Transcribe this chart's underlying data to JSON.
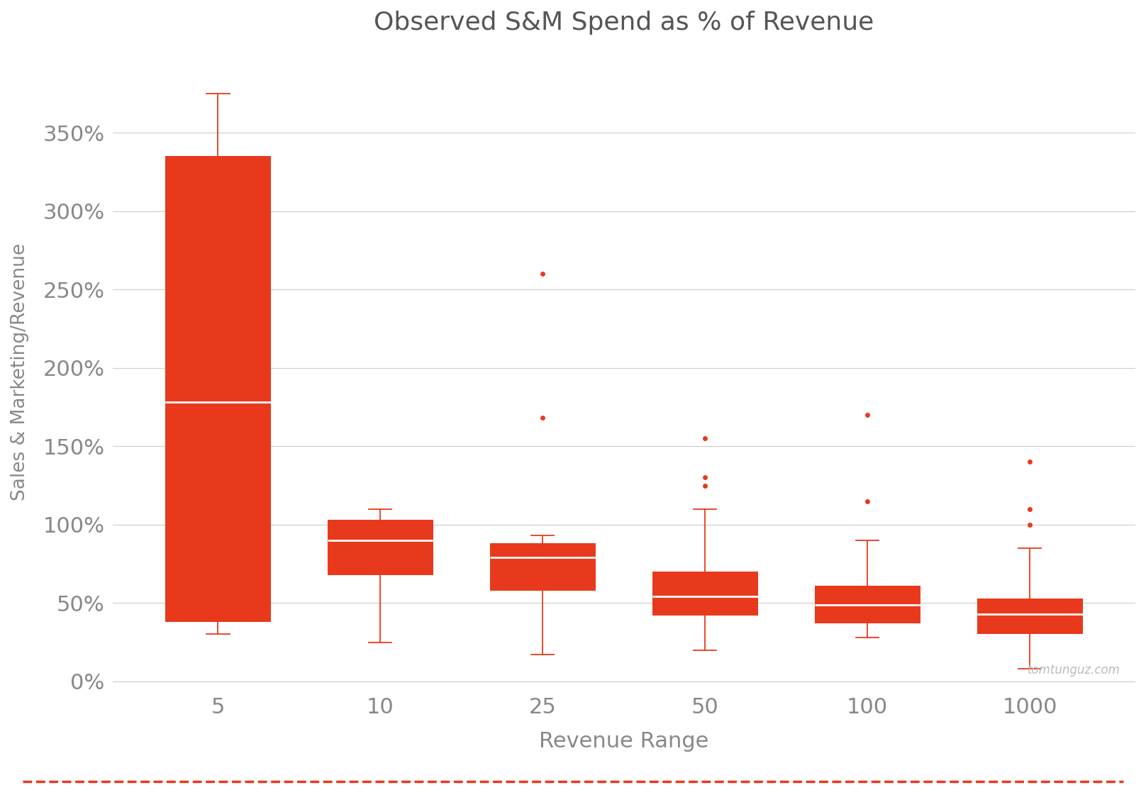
{
  "title": "Observed S&M Spend as % of Revenue",
  "xlabel": "Revenue Range",
  "ylabel": "Sales & Marketing/Revenue",
  "categories": [
    "5",
    "10",
    "25",
    "50",
    "100",
    "1000"
  ],
  "box_color": "#E8391D",
  "median_color": "#FFFFFF",
  "whisker_color": "#E8391D",
  "flier_color": "#E8391D",
  "background_color": "#FFFFFF",
  "grid_color": "#CCCCCC",
  "title_color": "#555555",
  "label_color": "#888888",
  "tick_color": "#888888",
  "dashed_line_color": "#E8391D",
  "watermark": "tomtunguz.com",
  "boxes": [
    {
      "whislo": 30,
      "q1": 38,
      "med": 178,
      "q3": 335,
      "whishi": 375,
      "fliers": []
    },
    {
      "whislo": 25,
      "q1": 68,
      "med": 90,
      "q3": 103,
      "whishi": 110,
      "fliers": []
    },
    {
      "whislo": 17,
      "q1": 58,
      "med": 79,
      "q3": 88,
      "whishi": 93,
      "fliers": [
        168,
        260
      ]
    },
    {
      "whislo": 20,
      "q1": 42,
      "med": 54,
      "q3": 70,
      "whishi": 110,
      "fliers": [
        125,
        130,
        155
      ]
    },
    {
      "whislo": 28,
      "q1": 37,
      "med": 49,
      "q3": 61,
      "whishi": 90,
      "fliers": [
        115,
        170
      ]
    },
    {
      "whislo": 8,
      "q1": 30,
      "med": 43,
      "q3": 53,
      "whishi": 85,
      "fliers": [
        100,
        110,
        140
      ]
    }
  ],
  "ylim": [
    -5,
    400
  ],
  "yticks": [
    0,
    50,
    100,
    150,
    200,
    250,
    300,
    350
  ],
  "ytick_labels": [
    "0%",
    "50%",
    "100%",
    "150%",
    "200%",
    "250%",
    "300%",
    "350%"
  ],
  "box_width": 0.65,
  "whisker_linewidth": 1.3,
  "median_linewidth": 2.0,
  "flier_size": 5
}
